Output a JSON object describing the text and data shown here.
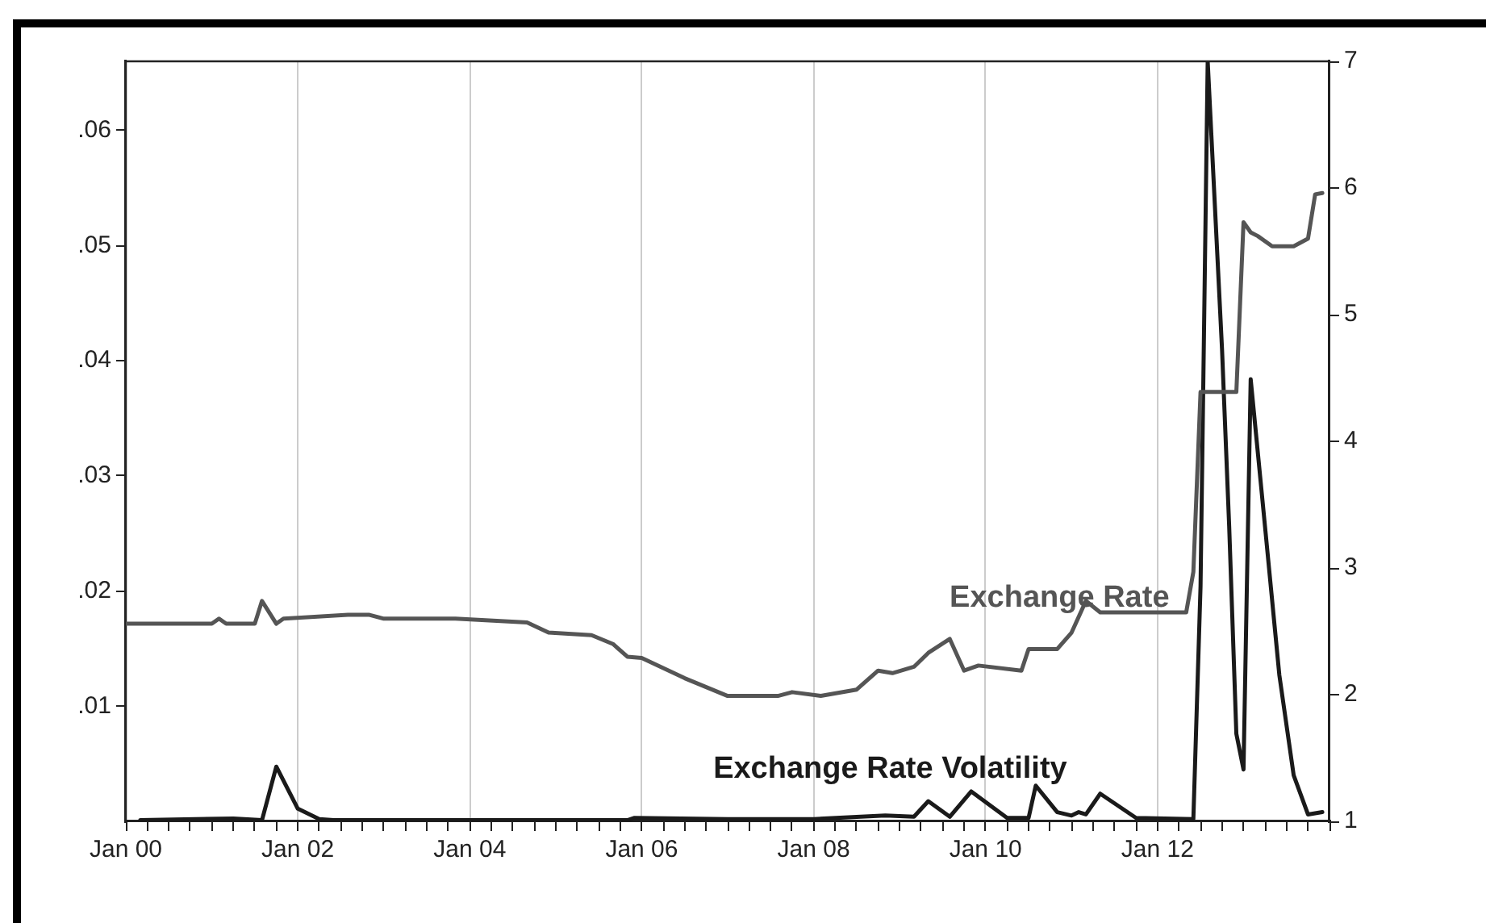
{
  "chart_data": {
    "type": "line",
    "xlim": [
      "2000-01",
      "2014-01"
    ],
    "xticks": [
      {
        "value": "2000-01",
        "label": "Jan 00"
      },
      {
        "value": "2000-04",
        "label": null
      },
      {
        "value": "2000-07",
        "label": null
      },
      {
        "value": "2000-10",
        "label": null
      },
      {
        "value": "2001-01",
        "label": null
      },
      {
        "value": "2001-04",
        "label": null
      },
      {
        "value": "2001-07",
        "label": null
      },
      {
        "value": "2001-10",
        "label": null
      },
      {
        "value": "2002-01",
        "label": "Jan 02"
      },
      {
        "value": "2002-04",
        "label": null
      },
      {
        "value": "2002-07",
        "label": null
      },
      {
        "value": "2002-10",
        "label": null
      },
      {
        "value": "2003-01",
        "label": null
      },
      {
        "value": "2003-04",
        "label": null
      },
      {
        "value": "2003-07",
        "label": null
      },
      {
        "value": "2003-10",
        "label": null
      },
      {
        "value": "2004-01",
        "label": "Jan 04"
      },
      {
        "value": "2004-04",
        "label": null
      },
      {
        "value": "2004-07",
        "label": null
      },
      {
        "value": "2004-10",
        "label": null
      },
      {
        "value": "2005-01",
        "label": null
      },
      {
        "value": "2005-04",
        "label": null
      },
      {
        "value": "2005-07",
        "label": null
      },
      {
        "value": "2005-10",
        "label": null
      },
      {
        "value": "2006-01",
        "label": "Jan 06"
      },
      {
        "value": "2006-04",
        "label": null
      },
      {
        "value": "2006-07",
        "label": null
      },
      {
        "value": "2006-10",
        "label": null
      },
      {
        "value": "2007-01",
        "label": null
      },
      {
        "value": "2007-04",
        "label": null
      },
      {
        "value": "2007-07",
        "label": null
      },
      {
        "value": "2007-10",
        "label": null
      },
      {
        "value": "2008-01",
        "label": "Jan 08"
      },
      {
        "value": "2008-04",
        "label": null
      },
      {
        "value": "2008-07",
        "label": null
      },
      {
        "value": "2008-10",
        "label": null
      },
      {
        "value": "2009-01",
        "label": null
      },
      {
        "value": "2009-04",
        "label": null
      },
      {
        "value": "2009-07",
        "label": null
      },
      {
        "value": "2009-10",
        "label": null
      },
      {
        "value": "2010-01",
        "label": "Jan 10"
      },
      {
        "value": "2010-04",
        "label": null
      },
      {
        "value": "2010-07",
        "label": null
      },
      {
        "value": "2010-10",
        "label": null
      },
      {
        "value": "2011-01",
        "label": null
      },
      {
        "value": "2011-04",
        "label": null
      },
      {
        "value": "2011-07",
        "label": null
      },
      {
        "value": "2011-10",
        "label": null
      },
      {
        "value": "2012-01",
        "label": "Jan 12"
      },
      {
        "value": "2012-04",
        "label": null
      },
      {
        "value": "2012-07",
        "label": null
      },
      {
        "value": "2012-10",
        "label": null
      },
      {
        "value": "2013-01",
        "label": null
      },
      {
        "value": "2013-04",
        "label": null
      },
      {
        "value": "2013-07",
        "label": null
      },
      {
        "value": "2013-10",
        "label": null
      },
      {
        "value": "2014-01",
        "label": null
      }
    ],
    "ylim": [
      0,
      0.066
    ],
    "yticks": [
      {
        "value": 0.01,
        "label": ".01"
      },
      {
        "value": 0.02,
        "label": ".02"
      },
      {
        "value": 0.03,
        "label": ".03"
      },
      {
        "value": 0.04,
        "label": ".04"
      },
      {
        "value": 0.05,
        "label": ".05"
      },
      {
        "value": 0.06,
        "label": ".06"
      }
    ],
    "y2lim": [
      1,
      7
    ],
    "y2ticks": [
      1,
      2,
      3,
      4,
      5,
      6,
      7
    ],
    "grid": "x",
    "legend": false,
    "marker": "none",
    "line_style": "solid",
    "series": [
      {
        "name": "Exchange Rate",
        "color": "#555555",
        "axis": "y2",
        "x": [
          "2000-01",
          "2001-01",
          "2001-02",
          "2001-03",
          "2001-07",
          "2001-08",
          "2001-10",
          "2001-11",
          "2002-08",
          "2002-11",
          "2003-01",
          "2003-11",
          "2004-09",
          "2004-12",
          "2005-06",
          "2005-09",
          "2005-11",
          "2006-01",
          "2006-07",
          "2007-01",
          "2007-08",
          "2007-10",
          "2008-02",
          "2008-07",
          "2008-10",
          "2008-12",
          "2009-03",
          "2009-05",
          "2009-08",
          "2009-10",
          "2009-12",
          "2010-06",
          "2010-07",
          "2010-11",
          "2011-01",
          "2011-03",
          "2011-05",
          "2012-05",
          "2012-06",
          "2012-07",
          "2012-12",
          "2013-01",
          "2013-02",
          "2013-03",
          "2013-05",
          "2013-08",
          "2013-10",
          "2013-11",
          "2013-12"
        ],
        "values": [
          2.56,
          2.56,
          2.6,
          2.56,
          2.56,
          2.74,
          2.56,
          2.6,
          2.63,
          2.63,
          2.6,
          2.6,
          2.57,
          2.49,
          2.47,
          2.4,
          2.3,
          2.29,
          2.13,
          1.99,
          1.99,
          2.02,
          1.99,
          2.04,
          2.19,
          2.17,
          2.22,
          2.33,
          2.44,
          2.19,
          2.23,
          2.19,
          2.36,
          2.36,
          2.49,
          2.74,
          2.65,
          2.65,
          2.97,
          4.39,
          4.39,
          5.73,
          5.65,
          5.62,
          5.54,
          5.54,
          5.6,
          5.95,
          5.96
        ]
      },
      {
        "name": "Exchange Rate Volatility",
        "color": "#1a1a1a",
        "axis": "y",
        "x": [
          "2000-03",
          "2001-04",
          "2001-08",
          "2001-10",
          "2002-01",
          "2002-04",
          "2002-06",
          "2005-11",
          "2005-12",
          "2007-01",
          "2008-01",
          "2008-11",
          "2009-03",
          "2009-05",
          "2009-08",
          "2009-11",
          "2010-04",
          "2010-07",
          "2010-08",
          "2010-11",
          "2011-01",
          "2011-02",
          "2011-03",
          "2011-05",
          "2011-10",
          "2012-06",
          "2012-07",
          "2012-08",
          "2012-10",
          "2012-11",
          "2012-12",
          "2013-01",
          "2013-02",
          "2013-04",
          "2013-06",
          "2013-08",
          "2013-10",
          "2013-12"
        ],
        "values": [
          0.0001,
          0.00025,
          0.0001,
          0.00475,
          0.0011,
          0.0002,
          0.0001,
          0.0001,
          0.0003,
          0.0002,
          0.0002,
          0.0005,
          0.0004,
          0.00175,
          0.0004,
          0.0026,
          0.0003,
          0.0003,
          0.0031,
          0.0008,
          0.0005,
          0.0008,
          0.0006,
          0.0024,
          0.0003,
          0.0002,
          0.0204,
          0.066,
          0.041,
          0.0256,
          0.0076,
          0.0045,
          0.0384,
          0.0256,
          0.0127,
          0.004,
          0.0006,
          0.0008
        ]
      }
    ]
  }
}
